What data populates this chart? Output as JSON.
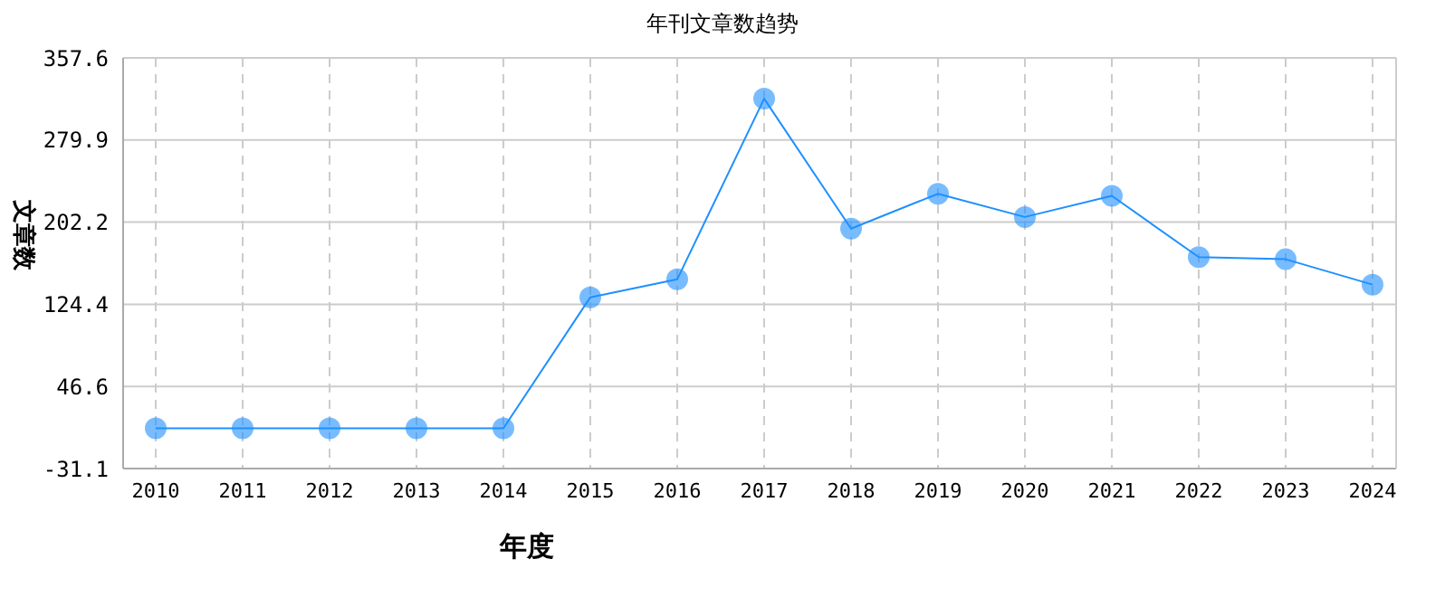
{
  "chart_data": {
    "type": "line",
    "title": "年刊文章数趋势",
    "xlabel": "年度",
    "ylabel": "文章数",
    "categories": [
      "2010",
      "2011",
      "2012",
      "2013",
      "2014",
      "2015",
      "2016",
      "2017",
      "2018",
      "2019",
      "2020",
      "2021",
      "2022",
      "2023",
      "2024"
    ],
    "series": [
      {
        "color": "#1e90ff",
        "values": [
          7,
          7,
          7,
          7,
          7,
          131,
          148,
          319,
          196,
          229,
          207,
          227,
          169,
          167,
          143
        ]
      }
    ],
    "ylim": [
      -31.1,
      357.6
    ],
    "yticks": [
      -31.1,
      46.6,
      124.4,
      202.2,
      279.9,
      357.6
    ],
    "grid": true,
    "marker": "circle",
    "line_style": "solid",
    "legend": false
  }
}
